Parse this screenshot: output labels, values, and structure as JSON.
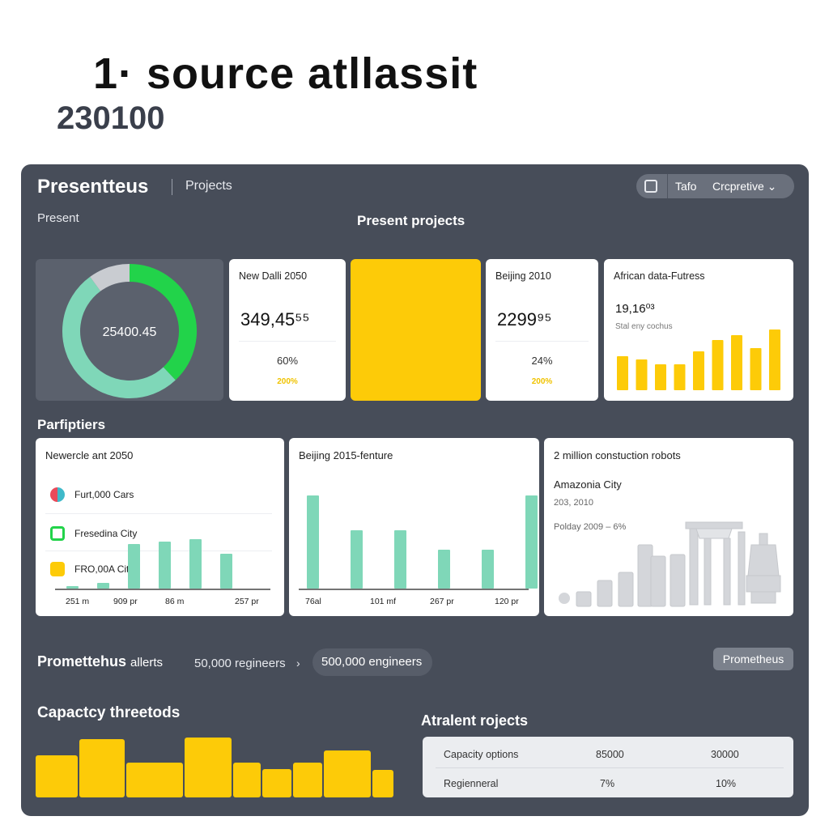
{
  "hero": {
    "title": "1·  source atllassit",
    "subtitle": "230100"
  },
  "header": {
    "brand": "Presentteus",
    "nav_projects": "Projects",
    "toolbar": {
      "tafo": "Tafo",
      "selector": "Crcpretive ⌄"
    }
  },
  "present_label": "Present",
  "present_projects_title": "Present projects",
  "donut": {
    "center_label": "25400.45",
    "segments": [
      {
        "name": "green",
        "value": 38,
        "color": "#22d34a"
      },
      {
        "name": "mint",
        "value": 52,
        "color": "#7fd7b8"
      },
      {
        "name": "grey",
        "value": 10,
        "color": "#c9ccd1"
      }
    ]
  },
  "cards": [
    {
      "title": "New Dalli 2050",
      "value": "349,45⁵⁵",
      "pct": "60%",
      "sub": "200%"
    },
    {
      "title": "Beijing 2010",
      "value": "2299⁹⁵",
      "pct": "24%",
      "sub": "200%"
    }
  ],
  "african": {
    "title": "African data-Futress",
    "value": "19,16⁰³",
    "sub": "Stal eny cochus",
    "bar_values": [
      42,
      38,
      32,
      32,
      48,
      62,
      68,
      52,
      75
    ],
    "color": "#fdcb08"
  },
  "section_label": "Parfiptiers",
  "panel1": {
    "title": "Newercle ant 2050",
    "legend": [
      {
        "label": "Furt,000 Cars",
        "color": "#ea4a5a"
      },
      {
        "label": "Fresedina City",
        "color": "#22d34a"
      },
      {
        "label": "FRO,00A City",
        "color": "#fdcb08"
      }
    ],
    "bar_values": [
      3,
      7,
      55,
      58,
      61,
      43
    ],
    "axis": [
      "251 m",
      "909 pr",
      "86 m",
      "257 pr"
    ],
    "color": "#7fd7b8"
  },
  "panel2": {
    "title": "Beijing 2015-fenture",
    "bar_values": [
      115,
      72,
      72,
      48,
      48,
      115
    ],
    "axis": [
      "76al",
      "101 mf",
      "267 pr",
      "120 pr"
    ],
    "color": "#7fd7b8"
  },
  "panel3": {
    "title": "2 million constuction robots",
    "subtitle": "Amazonia City",
    "year": "203, 2010",
    "line": "Polday 2009 – 6%",
    "bar_values": [
      18,
      32,
      42,
      76,
      62,
      64
    ]
  },
  "alerts": {
    "title": "Promettehus",
    "title_suffix": "allerts",
    "crumb": "50,000 regineers",
    "chev": "›",
    "pill": "500,000 engineers",
    "button": "Prometheus"
  },
  "capacity": {
    "title": "Capactcy threetods",
    "bar_values": [
      52,
      72,
      43,
      74,
      43,
      35,
      43,
      58,
      34
    ],
    "color": "#fdcb08"
  },
  "table": {
    "title": "Atralent rojects",
    "rows": [
      {
        "label": "Capacity options",
        "a": "85000",
        "b": "30000"
      },
      {
        "label": "Regienneral",
        "a": "7%",
        "b": "10%"
      }
    ]
  }
}
